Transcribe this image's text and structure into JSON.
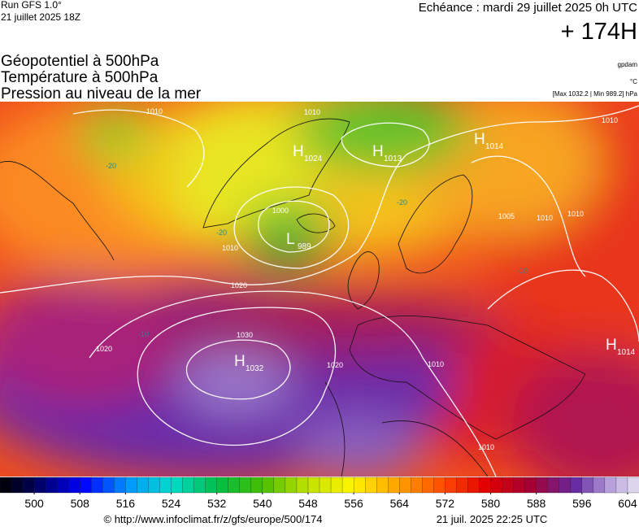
{
  "header": {
    "run": "Run GFS 1.0°",
    "run_date": "21 juillet 2025 18Z",
    "valid": "Echéance : mardi 29 juillet 2025 0h UTC",
    "lead": "+ 174H",
    "title_lines": [
      "Géopotentiel à 500hPa",
      "Température à 500hPa",
      "Pression au niveau de la mer"
    ],
    "units": [
      "gpdam",
      "°C",
      "[Max 1032.2 | Min 989.2] hPa"
    ]
  },
  "map": {
    "systems": [
      {
        "kind": "H",
        "value": "1024"
      },
      {
        "kind": "H",
        "value": "1013"
      },
      {
        "kind": "H",
        "value": "1014"
      },
      {
        "kind": "L",
        "value": "989"
      },
      {
        "kind": "H",
        "value": "1032"
      },
      {
        "kind": "H",
        "value": "1014"
      }
    ],
    "isobar_labels": [
      "1010",
      "1010",
      "1000",
      "1010",
      "1020",
      "1030",
      "1020",
      "1020",
      "1010",
      "1005",
      "1010",
      "1010",
      "1010",
      "1010"
    ],
    "temperature_labels": [
      "-20",
      "-20",
      "-20",
      "-10",
      "-10"
    ]
  },
  "colorbar": {
    "lim": [
      494,
      606
    ],
    "ticks": [
      500,
      508,
      516,
      524,
      532,
      540,
      548,
      556,
      564,
      572,
      580,
      588,
      596,
      604
    ]
  },
  "footer": {
    "source": "© http://www.infoclimat.fr/z/gfs/europe/500/174",
    "generated": "21 juil. 2025 22:25 UTC"
  }
}
